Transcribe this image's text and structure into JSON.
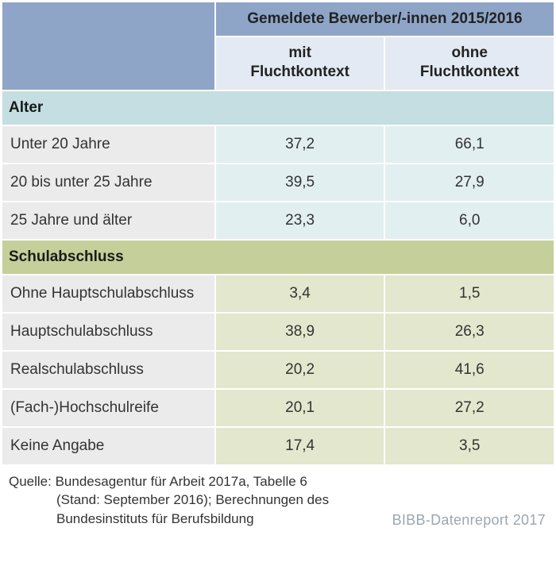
{
  "header": {
    "main": "Gemeldete Bewerber/-innen 2015/2016",
    "col1_line1": "mit",
    "col1_line2": "Fluchtkontext",
    "col2_line1": "ohne",
    "col2_line2": "Fluchtkontext"
  },
  "sections": {
    "age": {
      "title": "Alter",
      "rows": [
        {
          "label": "Unter 20 Jahre",
          "mit": "37,2",
          "ohne": "66,1"
        },
        {
          "label": "20 bis unter 25 Jahre",
          "mit": "39,5",
          "ohne": "27,9"
        },
        {
          "label": "25 Jahre und älter",
          "mit": "23,3",
          "ohne": "6,0"
        }
      ]
    },
    "edu": {
      "title": "Schulabschluss",
      "rows": [
        {
          "label": "Ohne Hauptschulabschluss",
          "mit": "3,4",
          "ohne": "1,5"
        },
        {
          "label": "Hauptschulabschluss",
          "mit": "38,9",
          "ohne": "26,3"
        },
        {
          "label": "Realschulabschluss",
          "mit": "20,2",
          "ohne": "41,6"
        },
        {
          "label": "(Fach-)Hochschulreife",
          "mit": "20,1",
          "ohne": "27,2"
        },
        {
          "label": "Keine Angabe",
          "mit": "17,4",
          "ohne": "3,5"
        }
      ]
    }
  },
  "footer": {
    "source_prefix": "Quelle: ",
    "line1": "Bundesagentur für Arbeit 2017a, Tabelle 6",
    "line2": "(Stand: September 2016); Berechnungen des",
    "line3": "Bundesinstituts für Berufsbildung",
    "brand": "BIBB-Datenreport 2017"
  },
  "colors": {
    "header_bg": "#8ea5c8",
    "subheader_bg": "#e4eaf3",
    "section_age_bg": "#c4dee1",
    "section_edu_bg": "#c5cf9a",
    "label_bg": "#ebebeb",
    "val_age_bg": "#e2eff0",
    "val_edu_bg": "#e3e7cd",
    "brand_color": "#9aa7b0",
    "text_color": "#333333"
  }
}
